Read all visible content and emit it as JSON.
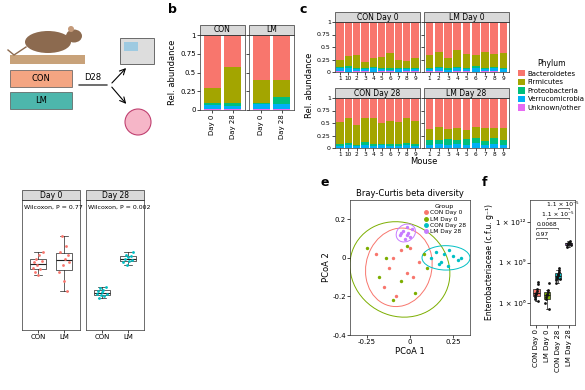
{
  "schematic": {
    "groups": [
      {
        "label": "CON",
        "color": "#F4A582"
      },
      {
        "label": "LM",
        "color": "#4DB6AC"
      }
    ],
    "arrow_label": "D28"
  },
  "chart_data": [
    {
      "type": "bar",
      "panel": "b",
      "stacked": true,
      "ylabel": "Rel. abundance",
      "ylim": [
        0,
        1
      ],
      "yticks": [
        0,
        0.25,
        0.5,
        0.75,
        1
      ],
      "facets": [
        {
          "name": "CON",
          "categories": [
            "Day 0",
            "Day 28"
          ]
        },
        {
          "name": "LM",
          "categories": [
            "Day 0",
            "Day 28"
          ]
        }
      ],
      "series": [
        {
          "color": "#F8766D",
          "values": [
            [
              0.7,
              0.43
            ],
            [
              0.6,
              0.6
            ]
          ]
        },
        {
          "color": "#A3A500",
          "values": [
            [
              0.2,
              0.47
            ],
            [
              0.3,
              0.22
            ]
          ]
        },
        {
          "color": "#00BF7D",
          "values": [
            [
              0.03,
              0.04
            ],
            [
              0.02,
              0.1
            ]
          ]
        },
        {
          "color": "#00B0F6",
          "values": [
            [
              0.05,
              0.05
            ],
            [
              0.06,
              0.07
            ]
          ]
        },
        {
          "color": "#E76BF3",
          "values": [
            [
              0.02,
              0.01
            ],
            [
              0.02,
              0.01
            ]
          ]
        }
      ]
    },
    {
      "type": "bar",
      "panel": "c",
      "stacked": true,
      "ylabel": "Rel. abundance",
      "xlabel": "Mouse",
      "ylim": [
        0,
        1
      ],
      "yticks": [
        0,
        0.25,
        0.5,
        0.75,
        1
      ],
      "legend": "right",
      "legend_title": "Phylum",
      "facets": [
        {
          "name": "CON Day 0",
          "categories": [
            "1",
            "10",
            "2",
            "3",
            "4",
            "5",
            "6",
            "7",
            "8",
            "9"
          ]
        },
        {
          "name": "LM Day 0",
          "categories": [
            "1",
            "2",
            "3",
            "4",
            "5",
            "6",
            "7",
            "8",
            "9"
          ]
        },
        {
          "name": "CON Day 28",
          "categories": [
            "1",
            "10",
            "2",
            "3",
            "4",
            "5",
            "6",
            "7",
            "8",
            "9"
          ]
        },
        {
          "name": "LM Day 28",
          "categories": [
            "1",
            "2",
            "3",
            "4",
            "5",
            "6",
            "7",
            "8",
            "9"
          ]
        }
      ],
      "series": [
        {
          "name": "Bacteroidetes",
          "color": "#F8766D",
          "values": [
            [
              0.75,
              0.68,
              0.66,
              0.79,
              0.72,
              0.69,
              0.62,
              0.75,
              0.77,
              0.71
            ],
            [
              0.66,
              0.59,
              0.72,
              0.55,
              0.63,
              0.66,
              0.6,
              0.64,
              0.62
            ],
            [
              0.47,
              0.4,
              0.53,
              0.4,
              0.39,
              0.49,
              0.45,
              0.48,
              0.4,
              0.46
            ],
            [
              0.61,
              0.58,
              0.62,
              0.59,
              0.64,
              0.58,
              0.6,
              0.6,
              0.6
            ]
          ]
        },
        {
          "name": "Firmicutes",
          "color": "#A3A500",
          "values": [
            [
              0.15,
              0.2,
              0.25,
              0.12,
              0.18,
              0.22,
              0.3,
              0.16,
              0.14,
              0.2
            ],
            [
              0.25,
              0.3,
              0.2,
              0.35,
              0.28,
              0.22,
              0.32,
              0.26,
              0.3
            ],
            [
              0.45,
              0.5,
              0.4,
              0.48,
              0.52,
              0.42,
              0.47,
              0.44,
              0.5,
              0.46
            ],
            [
              0.22,
              0.25,
              0.2,
              0.24,
              0.18,
              0.22,
              0.26,
              0.2,
              0.23
            ]
          ]
        },
        {
          "name": "Proteobacteria",
          "color": "#00BF7D",
          "values": [
            [
              0.02,
              0.03,
              0.02,
              0.03,
              0.02,
              0.02,
              0.03,
              0.02,
              0.02,
              0.03
            ],
            [
              0.02,
              0.02,
              0.03,
              0.02,
              0.02,
              0.03,
              0.02,
              0.02,
              0.02
            ],
            [
              0.03,
              0.04,
              0.03,
              0.05,
              0.04,
              0.03,
              0.04,
              0.03,
              0.04,
              0.03
            ],
            [
              0.1,
              0.08,
              0.12,
              0.09,
              0.11,
              0.1,
              0.08,
              0.12,
              0.1
            ]
          ]
        },
        {
          "name": "Verrucomicrobia",
          "color": "#00B0F6",
          "values": [
            [
              0.06,
              0.08,
              0.05,
              0.04,
              0.07,
              0.05,
              0.03,
              0.06,
              0.05,
              0.04
            ],
            [
              0.05,
              0.07,
              0.04,
              0.06,
              0.05,
              0.08,
              0.04,
              0.06,
              0.05
            ],
            [
              0.04,
              0.05,
              0.03,
              0.06,
              0.04,
              0.05,
              0.03,
              0.04,
              0.05,
              0.04
            ],
            [
              0.06,
              0.08,
              0.05,
              0.07,
              0.06,
              0.09,
              0.05,
              0.07,
              0.06
            ]
          ]
        },
        {
          "name": "Unknown/other",
          "color": "#E76BF3",
          "values": [
            [
              0.02,
              0.01,
              0.02,
              0.02,
              0.01,
              0.02,
              0.02,
              0.01,
              0.02,
              0.02
            ],
            [
              0.02,
              0.02,
              0.01,
              0.02,
              0.02,
              0.01,
              0.02,
              0.02,
              0.01
            ],
            [
              0.01,
              0.01,
              0.01,
              0.01,
              0.01,
              0.01,
              0.01,
              0.01,
              0.01,
              0.01
            ],
            [
              0.01,
              0.01,
              0.01,
              0.01,
              0.01,
              0.01,
              0.01,
              0.01,
              0.01
            ]
          ]
        }
      ]
    },
    {
      "type": "box",
      "tick_labels": "x",
      "ylim": [
        0,
        1
      ],
      "facets": [
        {
          "name": "Day 0",
          "annotation": "Wilcoxon, P = 0.77",
          "color": "#F8766D",
          "categories": [
            "CON",
            "LM"
          ],
          "values": [
            [
              0.48,
              0.52,
              0.45,
              0.55,
              0.5,
              0.42,
              0.58,
              0.47,
              0.53,
              0.6
            ],
            [
              0.45,
              0.6,
              0.72,
              0.5,
              0.38,
              0.55,
              0.65,
              0.3,
              0.58,
              0.52
            ]
          ]
        },
        {
          "name": "Day 28",
          "annotation": "Wilcoxon, P = 0.002",
          "color": "#00BFC4",
          "categories": [
            "CON",
            "LM"
          ],
          "values": [
            [
              0.28,
              0.3,
              0.25,
              0.32,
              0.27,
              0.29,
              0.31,
              0.26,
              0.33,
              0.28
            ],
            [
              0.52,
              0.55,
              0.58,
              0.5,
              0.56,
              0.53,
              0.57,
              0.54,
              0.6
            ]
          ]
        }
      ]
    },
    {
      "type": "scatter",
      "panel": "e",
      "title": "Bray-Curtis beta diversity",
      "xlabel": "PCoA 1",
      "ylabel": "PCoA 2",
      "xlim": [
        -0.35,
        0.35
      ],
      "ylim": [
        -0.4,
        0.3
      ],
      "xticks": [
        -0.25,
        0,
        0.25
      ],
      "yticks": [
        -0.4,
        -0.2,
        0,
        0.2
      ],
      "legend": "upper right",
      "legend_title": "Group",
      "series": [
        {
          "name": "CON Day 0",
          "color": "#F8766D",
          "x": [
            -0.2,
            -0.12,
            -0.05,
            0.02,
            0.05,
            -0.15,
            -0.08,
            0.0,
            -0.02,
            -0.1
          ],
          "y": [
            0.02,
            -0.05,
            0.04,
            -0.1,
            -0.02,
            -0.15,
            -0.2,
            0.05,
            -0.08,
            0.0
          ]
        },
        {
          "name": "LM Day 0",
          "color": "#7CAE00",
          "x": [
            -0.25,
            -0.18,
            -0.1,
            0.08,
            0.1,
            -0.05,
            0.03,
            -0.14,
            -0.02
          ],
          "y": [
            0.05,
            -0.1,
            -0.22,
            0.02,
            -0.05,
            -0.12,
            -0.18,
            0.0,
            0.06
          ]
        },
        {
          "name": "CON Day 28",
          "color": "#00BFC4",
          "x": [
            0.12,
            0.15,
            0.18,
            0.2,
            0.22,
            0.25,
            0.28,
            0.17,
            0.23,
            0.3
          ],
          "y": [
            0.0,
            0.03,
            -0.02,
            0.02,
            -0.04,
            0.01,
            -0.01,
            -0.03,
            0.04,
            0.0
          ]
        },
        {
          "name": "LM Day 28",
          "color": "#C77CFF",
          "x": [
            -0.06,
            -0.04,
            -0.03,
            -0.02,
            -0.01,
            0.0,
            0.01,
            -0.05,
            -0.02
          ],
          "y": [
            0.12,
            0.14,
            0.1,
            0.16,
            0.13,
            0.11,
            0.15,
            0.13,
            0.12
          ]
        }
      ]
    },
    {
      "type": "box",
      "panel": "f",
      "log": "y",
      "ylabel": "Enterobacteriaceae (c.f.u. g⁻¹)",
      "categories": [
        "CON Day 0",
        "LM Day 0",
        "CON Day 28",
        "LM Day 28"
      ],
      "colors": [
        "#F8766D",
        "#7CAE00",
        "#00BFC4",
        "#C77CFF"
      ],
      "ylim": [
        25000,
        45000000000000.0
      ],
      "yticks": [
        {
          "value": 1000000,
          "label": "1 × 10⁶"
        },
        {
          "value": 1000000000,
          "label": "1 × 10⁹"
        },
        {
          "value": 1000000000000,
          "label": "1 × 10¹²"
        }
      ],
      "values": [
        [
          2000000.0,
          3000000.0,
          4000000.0,
          5000000.0,
          6000000.0,
          8000000.0,
          12000000.0,
          25000000.0,
          40000000.0,
          1500000.0
        ],
        [
          1000000.0,
          2000000.0,
          3000000.0,
          4000000.0,
          5000000.0,
          7000000.0,
          9000000.0,
          30000000.0,
          400000.0
        ],
        [
          30000000.0,
          50000000.0,
          70000000.0,
          90000000.0,
          120000000.0,
          150000000.0,
          200000000.0,
          300000000.0,
          400000000.0,
          60000000.0
        ],
        [
          15000000000.0,
          20000000000.0,
          25000000000.0,
          30000000000.0,
          32000000000.0,
          35000000000.0,
          40000000000.0,
          28000000000.0,
          22000000000.0
        ]
      ],
      "annotations": [
        {
          "text": "0.97",
          "from": "CON Day 0",
          "to": "LM Day 0"
        },
        {
          "text": "0.0068",
          "from": "CON Day 0",
          "to": "CON Day 28"
        },
        {
          "text": "1.1 × 10⁻⁵",
          "from": "LM Day 0",
          "to": "LM Day 28"
        },
        {
          "text": "1.1 × 10⁻⁵",
          "from": "CON Day 28",
          "to": "LM Day 28"
        }
      ]
    }
  ]
}
